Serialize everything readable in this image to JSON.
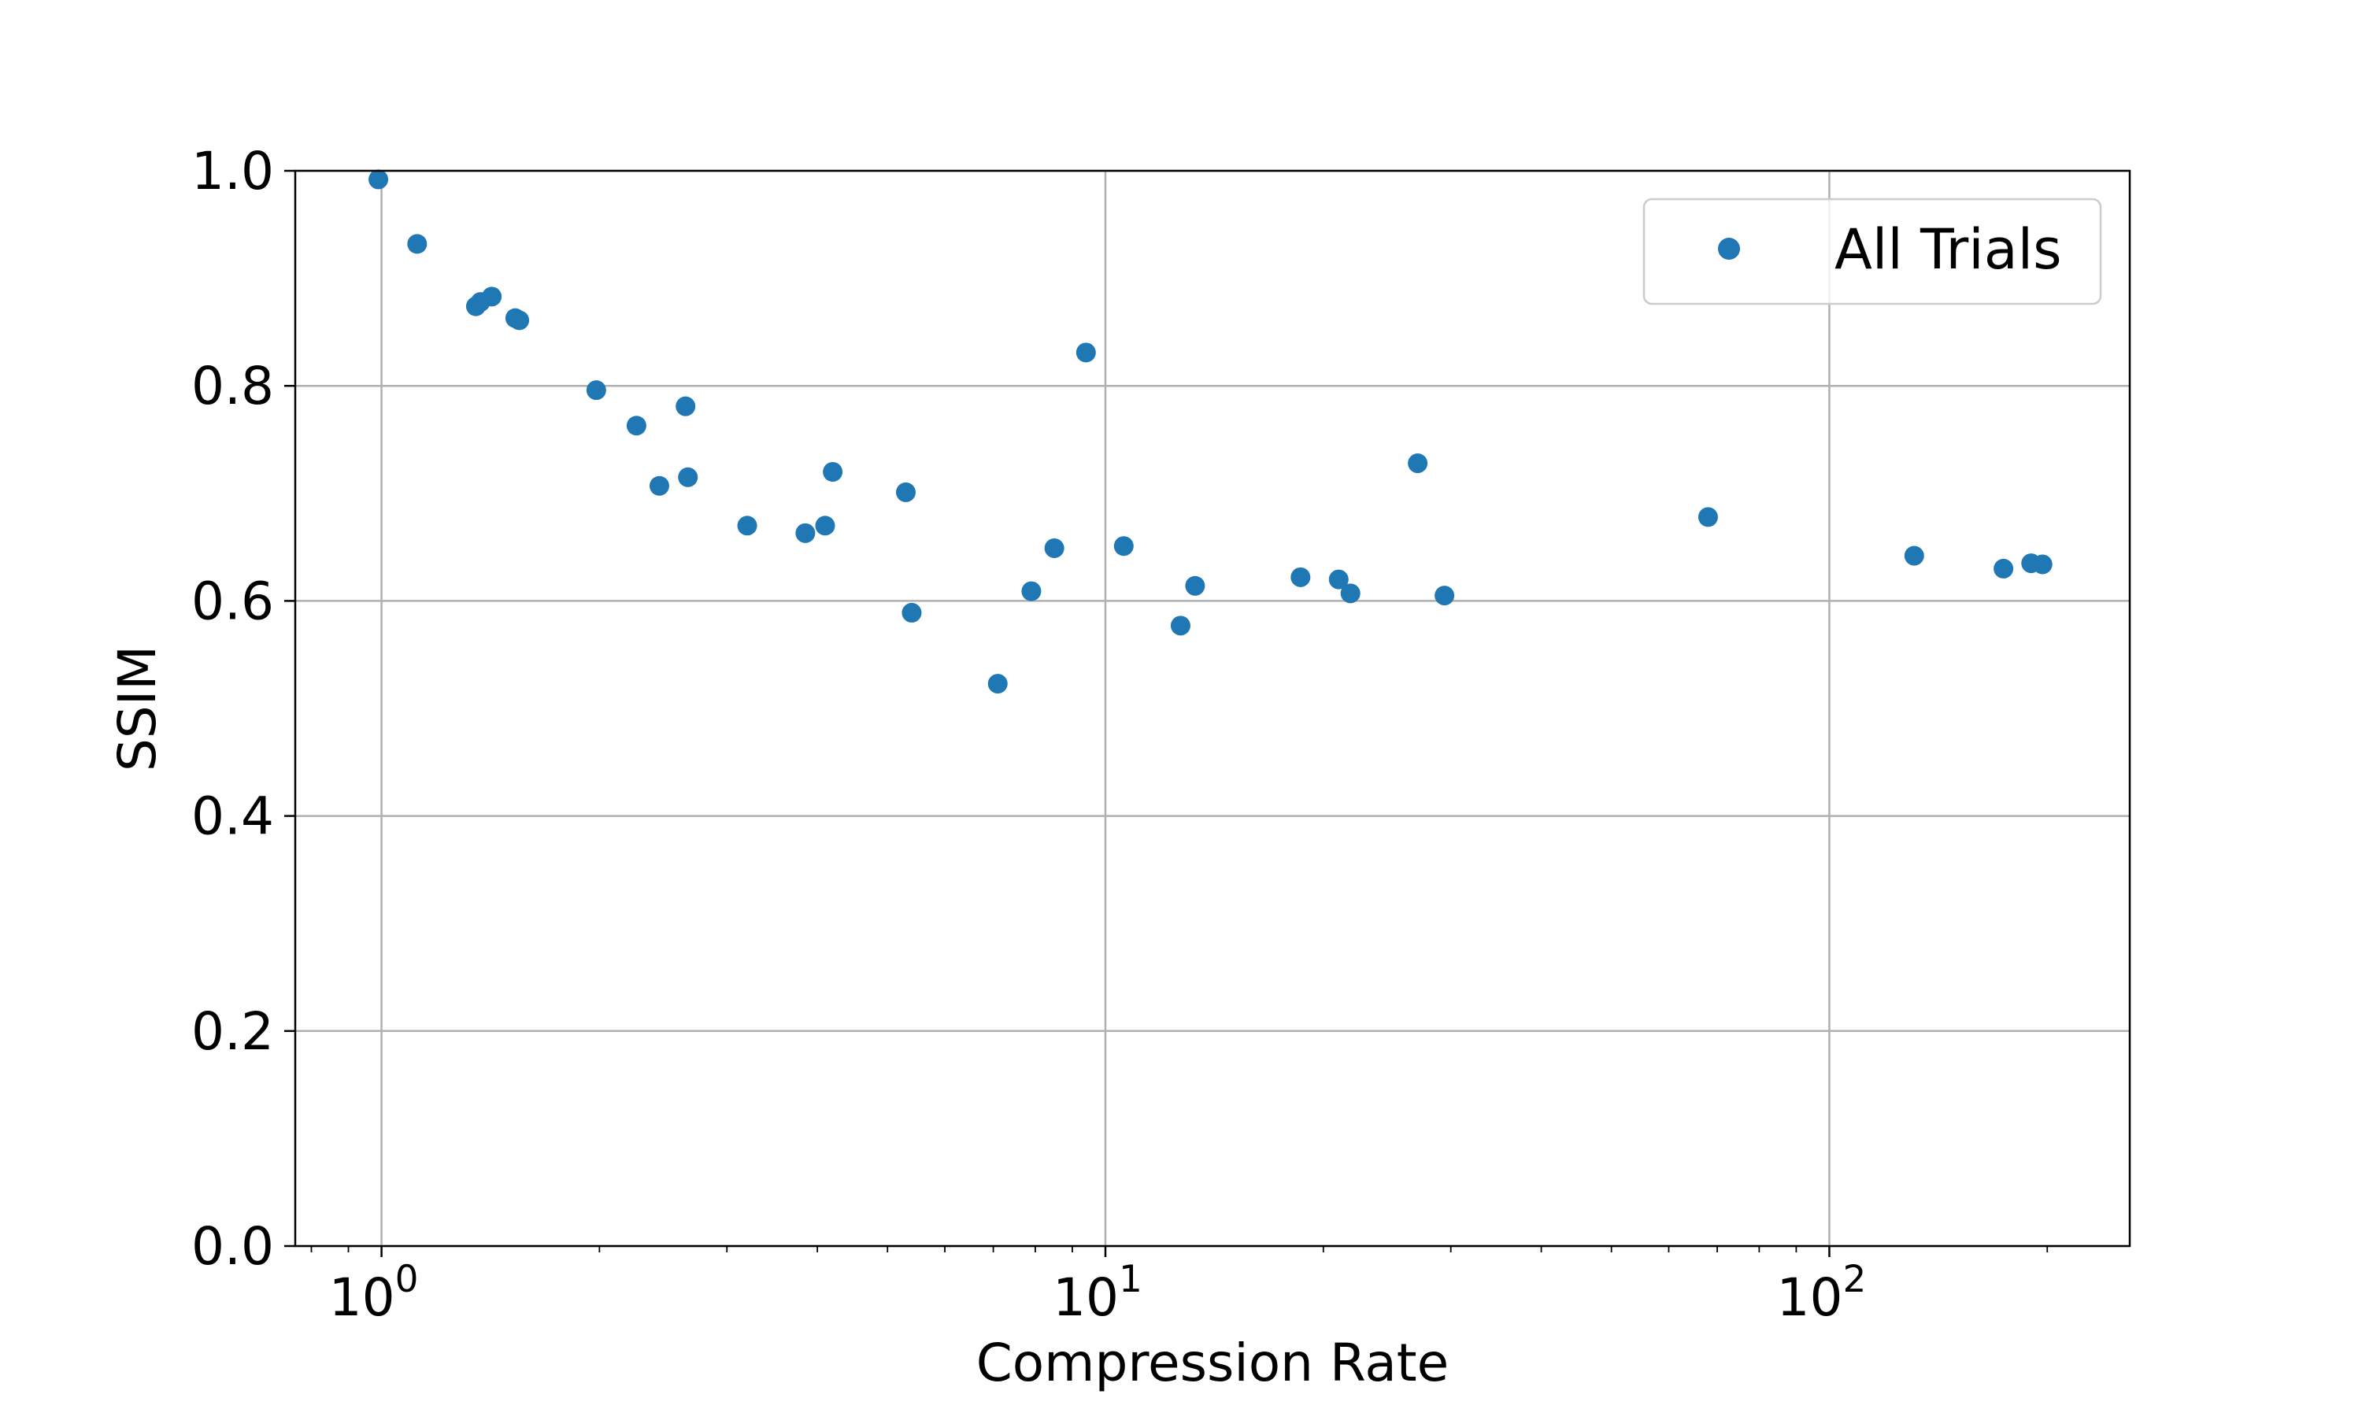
{
  "chart_data": {
    "type": "scatter",
    "title": "",
    "xlabel": "Compression Rate",
    "ylabel": "SSIM",
    "xscale": "log",
    "xlim": [
      0.76,
      260
    ],
    "ylim": [
      0.0,
      1.0
    ],
    "grid": true,
    "legend": {
      "placement": "top-right",
      "entries": [
        "All Trials"
      ]
    },
    "x_ticks": [
      {
        "value": 1,
        "base": "10",
        "exp": "0"
      },
      {
        "value": 10,
        "base": "10",
        "exp": "1"
      },
      {
        "value": 100,
        "base": "10",
        "exp": "2"
      }
    ],
    "y_ticks": [
      "0.0",
      "0.2",
      "0.4",
      "0.6",
      "0.8",
      "1.0"
    ],
    "colors": {
      "series": "#1f77b4",
      "grid": "#b0b0b0",
      "axis": "#000000"
    },
    "series": [
      {
        "name": "All Trials",
        "points": [
          {
            "x": 0.99,
            "y": 0.992
          },
          {
            "x": 1.12,
            "y": 0.932
          },
          {
            "x": 1.35,
            "y": 0.874
          },
          {
            "x": 1.37,
            "y": 0.878
          },
          {
            "x": 1.42,
            "y": 0.883
          },
          {
            "x": 1.53,
            "y": 0.863
          },
          {
            "x": 1.55,
            "y": 0.861
          },
          {
            "x": 1.98,
            "y": 0.796
          },
          {
            "x": 2.25,
            "y": 0.763
          },
          {
            "x": 2.42,
            "y": 0.707
          },
          {
            "x": 2.63,
            "y": 0.781
          },
          {
            "x": 2.65,
            "y": 0.715
          },
          {
            "x": 3.2,
            "y": 0.67
          },
          {
            "x": 3.85,
            "y": 0.663
          },
          {
            "x": 4.1,
            "y": 0.67
          },
          {
            "x": 4.2,
            "y": 0.72
          },
          {
            "x": 5.3,
            "y": 0.701
          },
          {
            "x": 5.4,
            "y": 0.589
          },
          {
            "x": 7.1,
            "y": 0.523
          },
          {
            "x": 7.9,
            "y": 0.609
          },
          {
            "x": 8.5,
            "y": 0.649
          },
          {
            "x": 9.4,
            "y": 0.831
          },
          {
            "x": 10.6,
            "y": 0.651
          },
          {
            "x": 12.7,
            "y": 0.577
          },
          {
            "x": 13.3,
            "y": 0.614
          },
          {
            "x": 18.6,
            "y": 0.622
          },
          {
            "x": 21.0,
            "y": 0.62
          },
          {
            "x": 21.8,
            "y": 0.607
          },
          {
            "x": 27.0,
            "y": 0.728
          },
          {
            "x": 29.4,
            "y": 0.605
          },
          {
            "x": 68.0,
            "y": 0.678
          },
          {
            "x": 131.0,
            "y": 0.642
          },
          {
            "x": 174.0,
            "y": 0.63
          },
          {
            "x": 190.0,
            "y": 0.635
          },
          {
            "x": 197.0,
            "y": 0.634
          }
        ]
      }
    ]
  }
}
